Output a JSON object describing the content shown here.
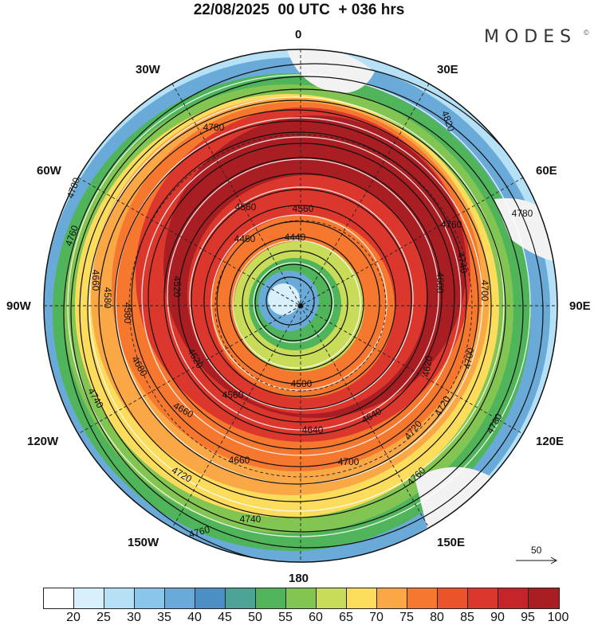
{
  "header": {
    "title": "22/08/2025  00 UTC  + 036 hrs",
    "brand": "MODES",
    "copyright": "©"
  },
  "longitude_labels": {
    "n": "0",
    "e30": "30E",
    "e60": "60E",
    "e90": "90E",
    "e120": "120E",
    "e150": "150E",
    "s": "180",
    "w150": "150W",
    "w120": "120W",
    "w90": "90W",
    "w60": "60W",
    "w30": "30W"
  },
  "contour_labels": [
    "4780",
    "4820",
    "4780",
    "4760",
    "4740",
    "4700",
    "4780",
    "4760",
    "4720",
    "4700",
    "4680",
    "4660",
    "4640",
    "4600",
    "4580",
    "4560",
    "4560",
    "4460",
    "4440",
    "4520",
    "4500",
    "4560",
    "4660",
    "4760",
    "4740",
    "4720",
    "4760",
    "4780",
    "4580",
    "4520",
    "4620",
    "4640",
    "4700",
    "4720",
    "4740",
    "4660"
  ],
  "vector_reference": {
    "label": "50"
  },
  "colorbar": {
    "labels": [
      "20",
      "25",
      "30",
      "35",
      "40",
      "45",
      "50",
      "55",
      "60",
      "65",
      "70",
      "75",
      "80",
      "85",
      "90",
      "95",
      "100"
    ],
    "colors": [
      "#ffffff",
      "#d8f0fb",
      "#b5e0f6",
      "#8ac6ea",
      "#6aaad9",
      "#4b8fc5",
      "#4aa394",
      "#50b45a",
      "#82c552",
      "#c8dc5a",
      "#fbdc5c",
      "#f9a845",
      "#f6782f",
      "#ea532c",
      "#dc372d",
      "#c6242b",
      "#a81e22",
      "#8b1b20"
    ]
  }
}
